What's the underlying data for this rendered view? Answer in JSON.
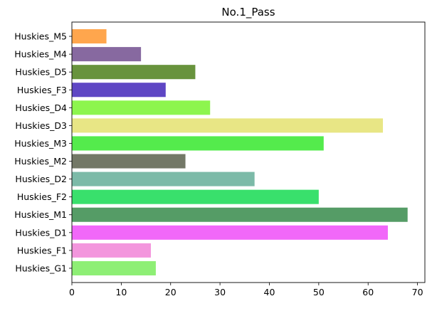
{
  "chart_data": {
    "type": "bar",
    "orientation": "horizontal",
    "title": "No.1_Pass",
    "xlabel": "",
    "ylabel": "",
    "categories": [
      "Huskies_M5",
      "Huskies_M4",
      "Huskies_D5",
      "Huskies_F3",
      "Huskies_D4",
      "Huskies_D3",
      "Huskies_M3",
      "Huskies_M2",
      "Huskies_D2",
      "Huskies_F2",
      "Huskies_M1",
      "Huskies_D1",
      "Huskies_F1",
      "Huskies_G1"
    ],
    "values": [
      7,
      14,
      25,
      19,
      28,
      63,
      51,
      23,
      37,
      50,
      68,
      64,
      16,
      17
    ],
    "colors": [
      "#ffa64d",
      "#8769a0",
      "#68933d",
      "#5e46c4",
      "#8df54e",
      "#e8e685",
      "#54eb4c",
      "#737867",
      "#7cbaa8",
      "#39e06c",
      "#559c66",
      "#f168f9",
      "#f396dd",
      "#8eef75"
    ],
    "xlim": [
      0,
      71.5
    ],
    "xticks": [
      0,
      10,
      20,
      30,
      40,
      50,
      60,
      70
    ],
    "grid": false,
    "legend": "none"
  }
}
